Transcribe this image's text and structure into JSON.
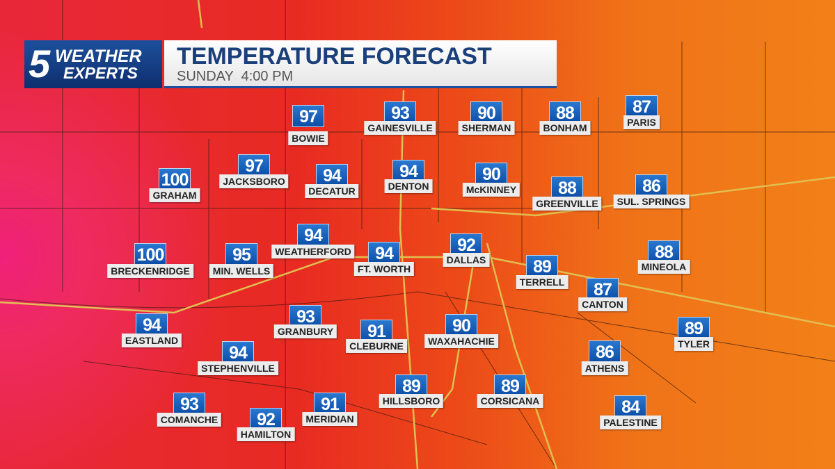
{
  "header": {
    "logo": {
      "number": "5",
      "line1": "WEATHER",
      "line2": "EXPERTS"
    },
    "title": "TEMPERATURE FORECAST",
    "subtitle": "SUNDAY  4:00 PM"
  },
  "cities": [
    {
      "name": "BOWIE",
      "temp": 97
    },
    {
      "name": "GAINESVILLE",
      "temp": 93
    },
    {
      "name": "SHERMAN",
      "temp": 90
    },
    {
      "name": "BONHAM",
      "temp": 88
    },
    {
      "name": "PARIS",
      "temp": 87
    },
    {
      "name": "JACKSBORO",
      "temp": 97
    },
    {
      "name": "GRAHAM",
      "temp": 100
    },
    {
      "name": "DECATUR",
      "temp": 94
    },
    {
      "name": "DENTON",
      "temp": 94
    },
    {
      "name": "McKINNEY",
      "temp": 90
    },
    {
      "name": "GREENVILLE",
      "temp": 88
    },
    {
      "name": "SUL. SPRINGS",
      "temp": 86
    },
    {
      "name": "WEATHERFORD",
      "temp": 94
    },
    {
      "name": "BRECKENRIDGE",
      "temp": 100
    },
    {
      "name": "MIN. WELLS",
      "temp": 95
    },
    {
      "name": "FT. WORTH",
      "temp": 94
    },
    {
      "name": "DALLAS",
      "temp": 92
    },
    {
      "name": "TERRELL",
      "temp": 89
    },
    {
      "name": "MINEOLA",
      "temp": 88
    },
    {
      "name": "CANTON",
      "temp": 87
    },
    {
      "name": "EASTLAND",
      "temp": 94
    },
    {
      "name": "GRANBURY",
      "temp": 93
    },
    {
      "name": "CLEBURNE",
      "temp": 91
    },
    {
      "name": "WAXAHACHIE",
      "temp": 90
    },
    {
      "name": "TYLER",
      "temp": 89
    },
    {
      "name": "STEPHENVILLE",
      "temp": 94
    },
    {
      "name": "ATHENS",
      "temp": 86
    },
    {
      "name": "HILLSBORO",
      "temp": 89
    },
    {
      "name": "CORSICANA",
      "temp": 89
    },
    {
      "name": "COMANCHE",
      "temp": 93
    },
    {
      "name": "MERIDIAN",
      "temp": 91
    },
    {
      "name": "HAMILTON",
      "temp": 92
    },
    {
      "name": "PALESTINE",
      "temp": 84
    }
  ]
}
